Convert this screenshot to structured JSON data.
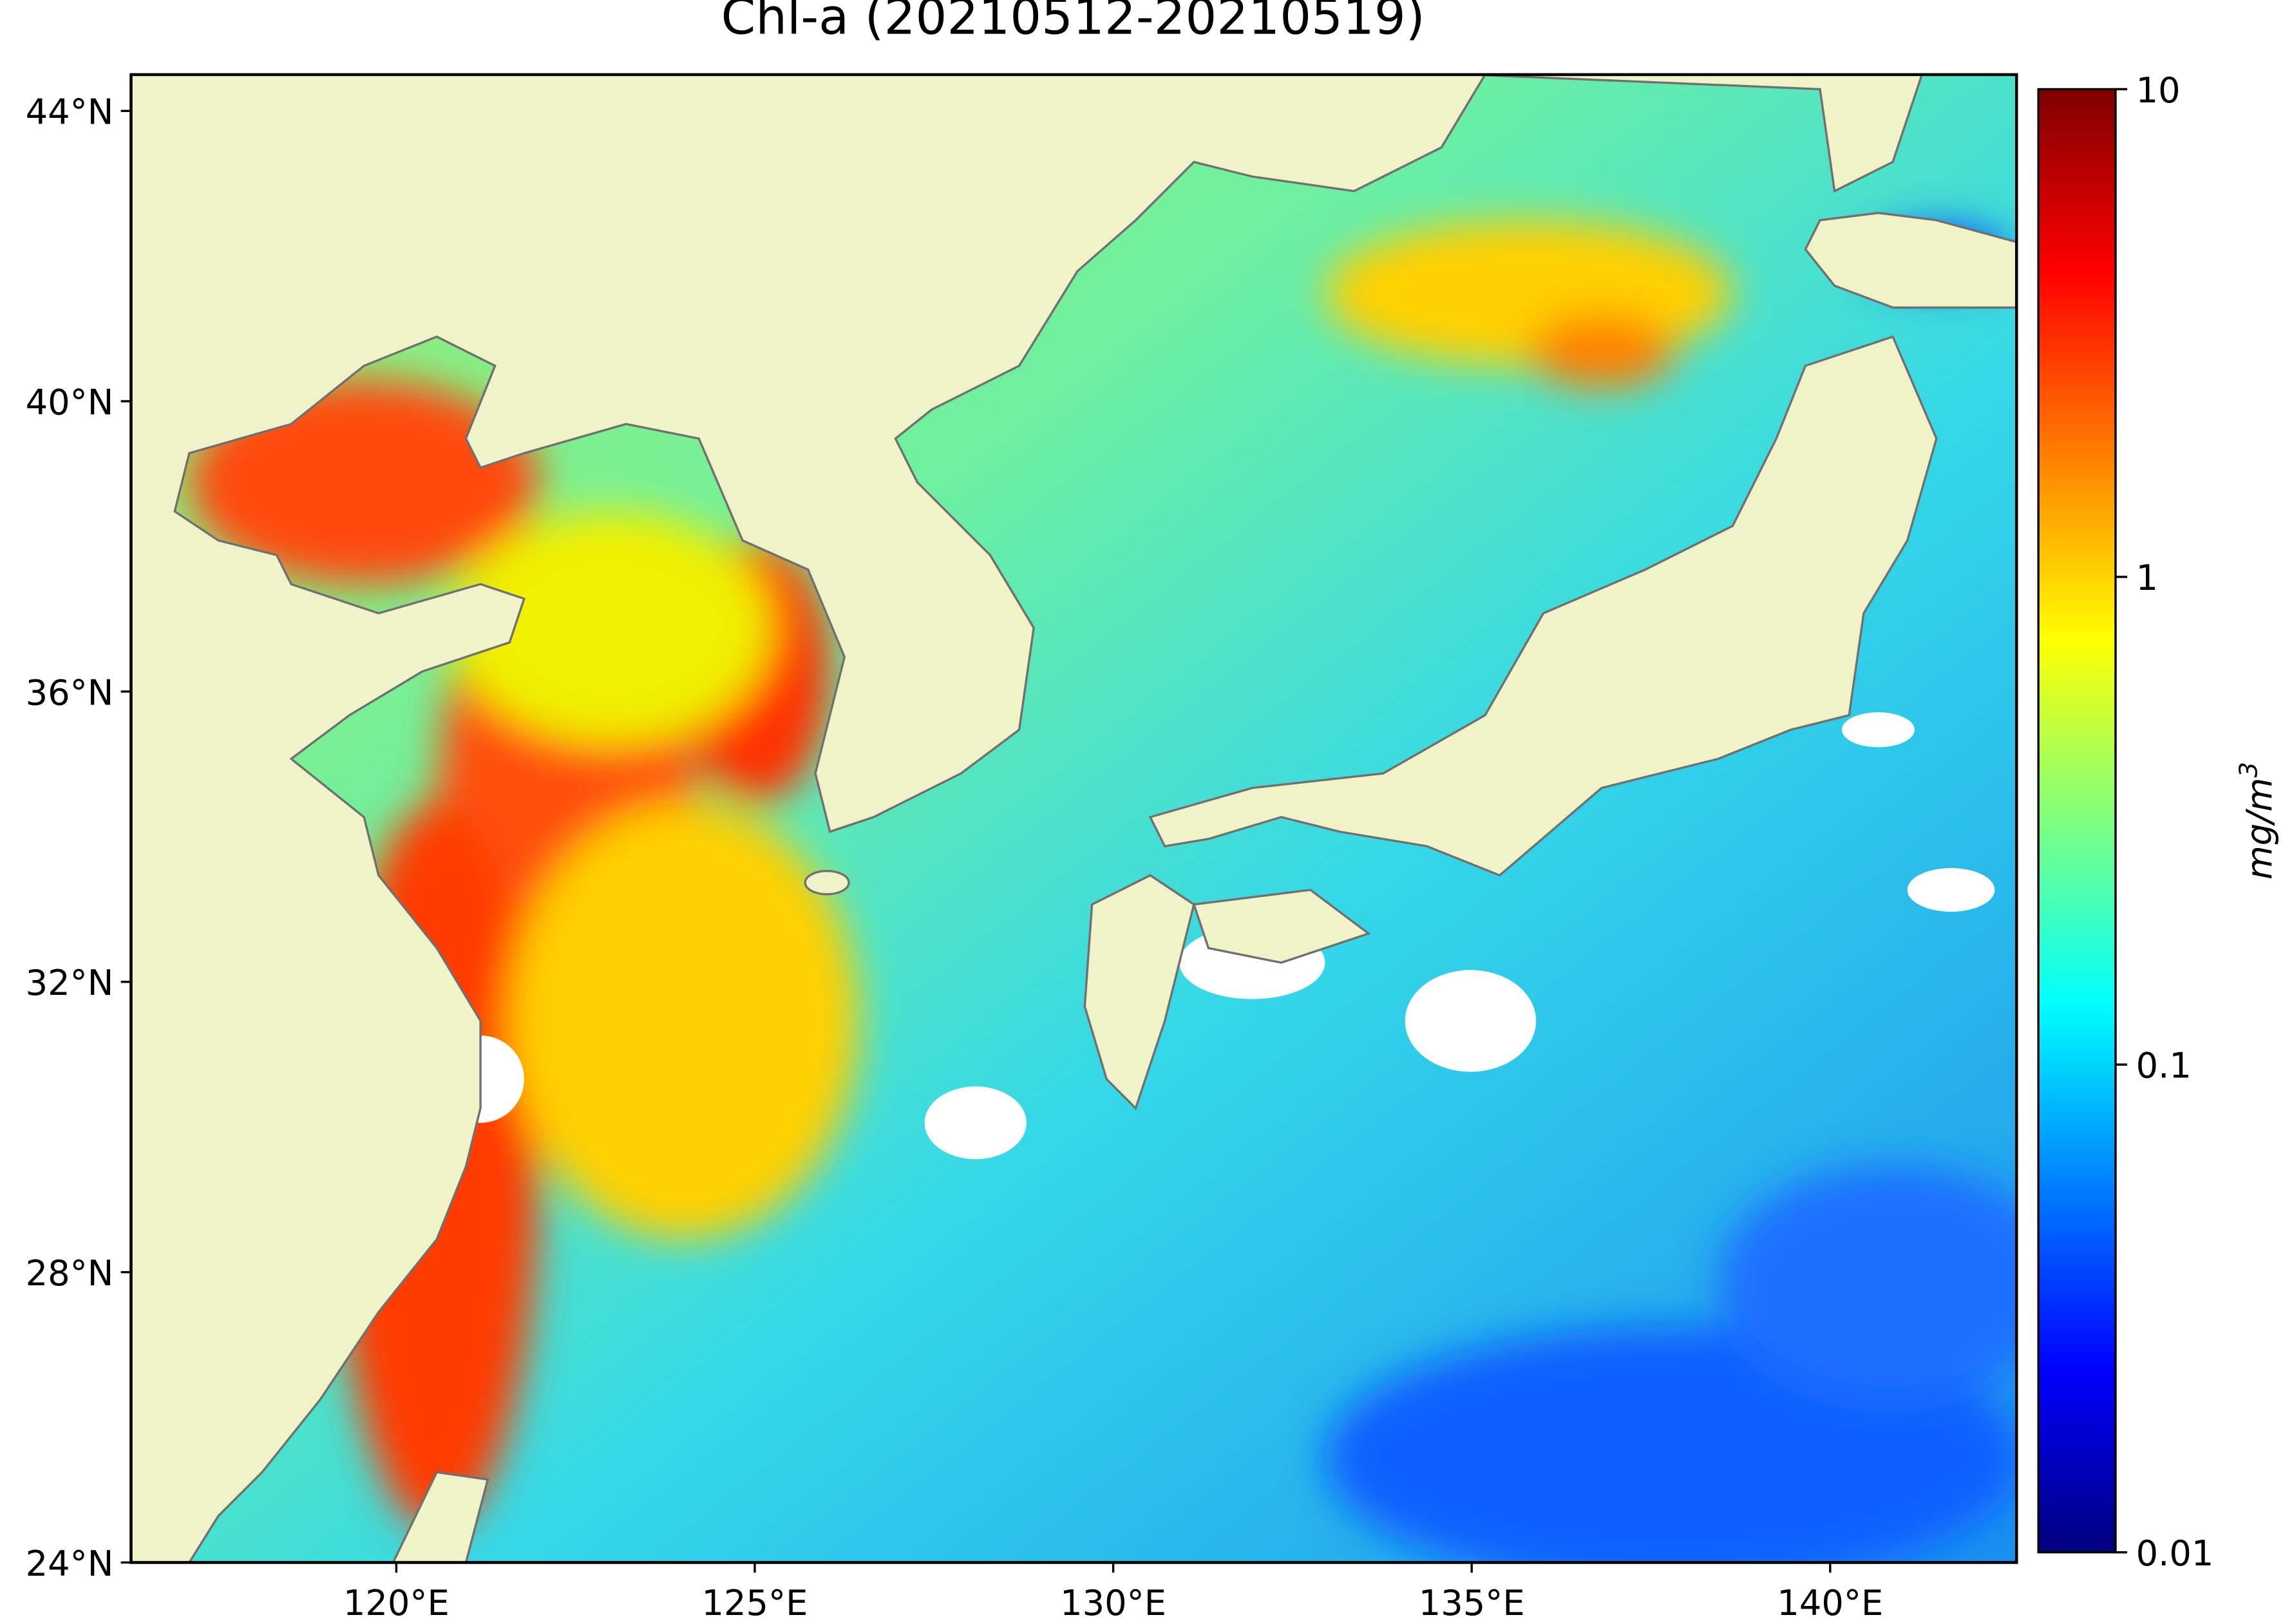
{
  "chart_data": {
    "type": "map",
    "title": "Chl-a (20210512-20210519)",
    "xlim": [
      116.3,
      142.6
    ],
    "ylim": [
      24,
      44.5
    ],
    "xticks": [
      {
        "value": 120,
        "label": "120°E"
      },
      {
        "value": 125,
        "label": "125°E"
      },
      {
        "value": 130,
        "label": "130°E"
      },
      {
        "value": 135,
        "label": "135°E"
      },
      {
        "value": 140,
        "label": "140°E"
      }
    ],
    "yticks": [
      {
        "value": 24,
        "label": "24°N"
      },
      {
        "value": 28,
        "label": "28°N"
      },
      {
        "value": 32,
        "label": "32°N"
      },
      {
        "value": 36,
        "label": "36°N"
      },
      {
        "value": 40,
        "label": "40°N"
      },
      {
        "value": 44,
        "label": "44°N"
      }
    ],
    "colorbar": {
      "lim": [
        0.01,
        10
      ],
      "ticks": [
        0.01,
        0.1,
        1,
        10
      ],
      "log_scale": true,
      "label": "mg/m",
      "label_superscript": "3",
      "colors": [
        "#00007f",
        "#0000ff",
        "#007fff",
        "#00ffff",
        "#7fff7f",
        "#ffff00",
        "#ff7f00",
        "#ff0000",
        "#7f0000"
      ]
    }
  }
}
